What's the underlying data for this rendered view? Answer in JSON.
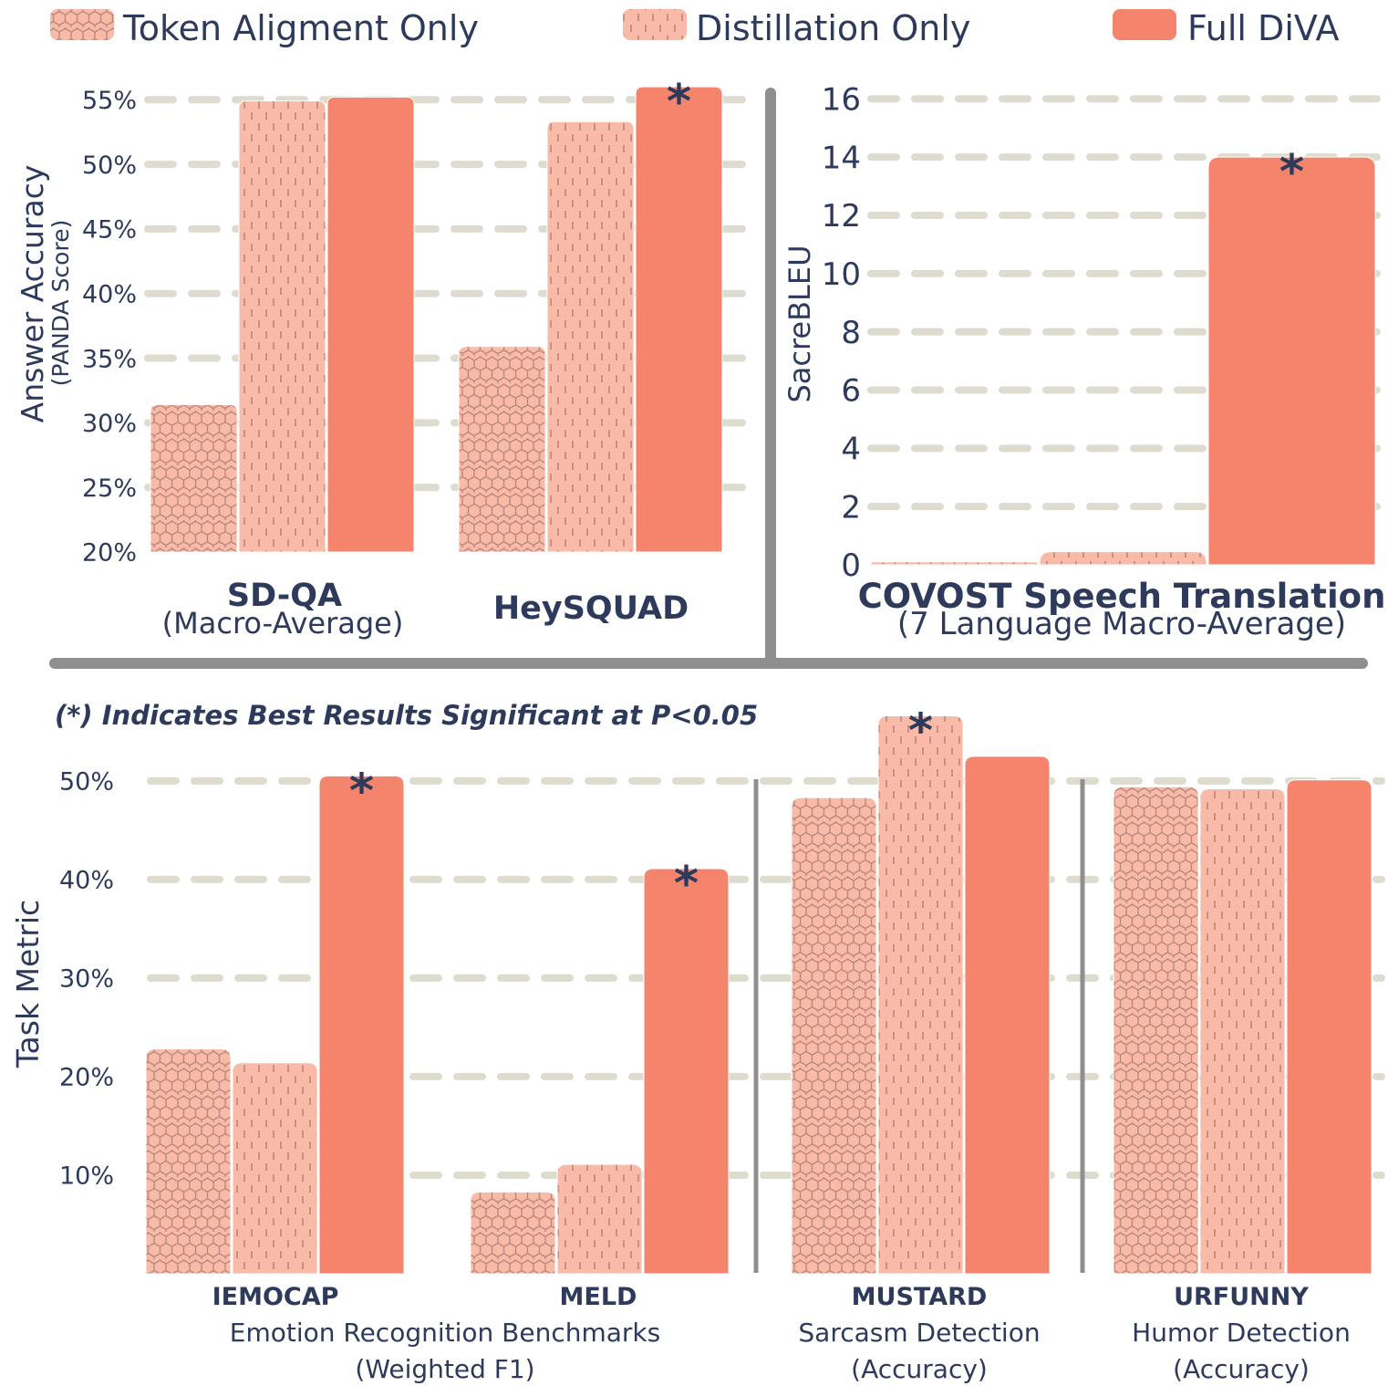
{
  "colors": {
    "full_diva": "#f4846b",
    "light_fill": "#f9baa8",
    "pattern_stroke": "#b9897d",
    "grid": "#dedbcf",
    "divider": "#8f8f8f",
    "text": "#2d3a5c"
  },
  "legend": [
    {
      "label": "Token Aligment Only",
      "pattern": "hex"
    },
    {
      "label": "Distillation Only",
      "pattern": "dash"
    },
    {
      "label": "Full DiVA",
      "pattern": "solid"
    }
  ],
  "note": "(*) Indicates Best Results Significant at P<0.05",
  "chart_data": [
    {
      "type": "bar",
      "panel": "top-left",
      "ylabel": "Answer Accuracy",
      "ylabel_sub": "(PANDA Score)",
      "ylim": [
        20,
        56.5
      ],
      "yticks": [
        20,
        25,
        30,
        35,
        40,
        45,
        50,
        55
      ],
      "ytick_labels": [
        "20%",
        "25%",
        "30%",
        "35%",
        "40%",
        "45%",
        "50%",
        "55%"
      ],
      "grid_values": [
        25,
        30,
        35,
        40,
        45,
        50,
        55
      ],
      "categories": [
        {
          "name": "SD-QA",
          "sub": "(Macro-Average)"
        },
        {
          "name": "HeySQUAD",
          "sub": ""
        }
      ],
      "series": [
        {
          "name": "Token Aligment Only",
          "values": [
            31.4,
            35.9
          ]
        },
        {
          "name": "Distillation Only",
          "values": [
            54.9,
            53.3
          ]
        },
        {
          "name": "Full DiVA",
          "values": [
            55.2,
            56.0
          ]
        }
      ],
      "significant": [
        {
          "category": 1,
          "series": 2,
          "label": "*"
        }
      ]
    },
    {
      "type": "bar",
      "panel": "top-right",
      "ylabel": "SacreBLEU",
      "ylim": [
        0,
        16.7
      ],
      "yticks": [
        0,
        2,
        4,
        6,
        8,
        10,
        12,
        14,
        16
      ],
      "ytick_labels": [
        "0",
        "2",
        "4",
        "6",
        "8",
        "10",
        "12",
        "14",
        "16"
      ],
      "grid_values": [
        2,
        4,
        6,
        8,
        10,
        12,
        14,
        16
      ],
      "categories": [
        {
          "name": "COVOST Speech Translation",
          "sub": "(7 Language Macro-Average)"
        }
      ],
      "series": [
        {
          "name": "Token Aligment Only",
          "values": [
            0.1
          ]
        },
        {
          "name": "Distillation Only",
          "values": [
            0.45
          ]
        },
        {
          "name": "Full DiVA",
          "values": [
            14.0
          ]
        }
      ],
      "significant": [
        {
          "category": 0,
          "series": 2,
          "label": "*"
        }
      ]
    },
    {
      "type": "bar",
      "panel": "bottom",
      "ylabel": "Task Metric",
      "ylim": [
        0,
        56
      ],
      "yticks": [
        10,
        20,
        30,
        40,
        50
      ],
      "ytick_labels": [
        "10%",
        "20%",
        "30%",
        "40%",
        "50%"
      ],
      "grid_values": [
        10,
        20,
        30,
        40,
        50
      ],
      "categories": [
        {
          "name": "IEMOCAP",
          "sub": ""
        },
        {
          "name": "MELD",
          "sub": ""
        },
        {
          "name": "MUSTARD",
          "sub": "Sarcasm Detection",
          "sub2": "(Accuracy)"
        },
        {
          "name": "URFUNNY",
          "sub": "Humor Detection",
          "sub2": "(Accuracy)"
        }
      ],
      "group_label": {
        "text": "Emotion Recognition Benchmarks",
        "sub": "(Weighted F1)"
      },
      "series": [
        {
          "name": "Token Aligment Only",
          "values": [
            22.8,
            8.3,
            48.3,
            49.4
          ]
        },
        {
          "name": "Distillation Only",
          "values": [
            21.4,
            11.1,
            56.6,
            49.2
          ]
        },
        {
          "name": "Full DiVA",
          "values": [
            50.5,
            41.1,
            52.5,
            50.1
          ]
        }
      ],
      "significant": [
        {
          "category": 0,
          "series": 2,
          "label": "*"
        },
        {
          "category": 1,
          "series": 2,
          "label": "*"
        },
        {
          "category": 2,
          "series": 1,
          "label": "*"
        }
      ]
    }
  ]
}
